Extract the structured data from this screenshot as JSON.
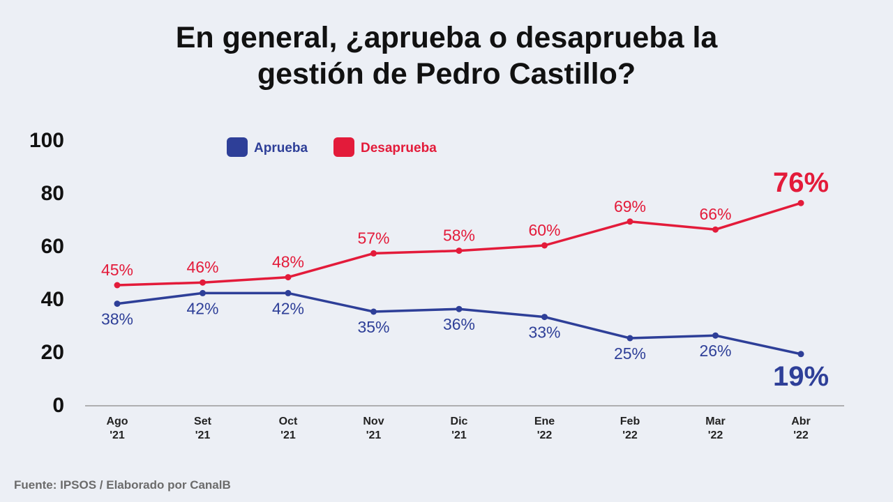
{
  "title_line1": "En general, ¿aprueba o desaprueba la",
  "title_line2": "gestión de Pedro Castillo?",
  "source": "Fuente: IPSOS / Elaborado por CanalB",
  "colors": {
    "aprueba": "#2e3f98",
    "desaprueba": "#e31b3a",
    "axis": "#999999"
  },
  "chart_data": {
    "type": "line",
    "categories": [
      [
        "Ago",
        "'21"
      ],
      [
        "Set",
        "'21"
      ],
      [
        "Oct",
        "'21"
      ],
      [
        "Nov",
        "'21"
      ],
      [
        "Dic",
        "'21"
      ],
      [
        "Ene",
        "'22"
      ],
      [
        "Feb",
        "'22"
      ],
      [
        "Mar",
        "'22"
      ],
      [
        "Abr",
        "'22"
      ]
    ],
    "yticks": [
      0,
      20,
      40,
      60,
      80,
      100
    ],
    "ylim": [
      0,
      100
    ],
    "grid": false,
    "legend": "top",
    "series": [
      {
        "name": "Aprueba",
        "key": "aprueba",
        "values": [
          38,
          42,
          42,
          35,
          36,
          33,
          25,
          26,
          19
        ],
        "labels": [
          "38%",
          "42%",
          "42%",
          "35%",
          "36%",
          "33%",
          "25%",
          "26%",
          "19%"
        ]
      },
      {
        "name": "Desaprueba",
        "key": "desaprueba",
        "values": [
          45,
          46,
          48,
          57,
          58,
          60,
          69,
          66,
          76
        ],
        "labels": [
          "45%",
          "46%",
          "48%",
          "57%",
          "58%",
          "60%",
          "69%",
          "66%",
          "76%"
        ]
      }
    ]
  }
}
